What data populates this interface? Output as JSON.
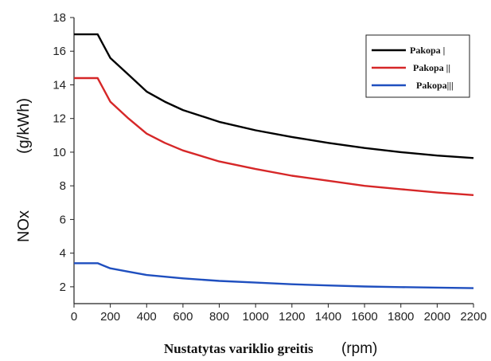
{
  "chart_data": {
    "type": "line",
    "xlabel": "Nustatytas variklio greitis",
    "xlabel_unit": "(rpm)",
    "ylabel": "NOx",
    "ylabel_unit": "(g/kWh)",
    "xlim": [
      0,
      2200
    ],
    "ylim": [
      1,
      18
    ],
    "xticks": [
      0,
      200,
      400,
      600,
      800,
      1000,
      1200,
      1400,
      1600,
      1800,
      2000,
      2200
    ],
    "yticks": [
      2,
      4,
      6,
      8,
      10,
      12,
      14,
      16,
      18
    ],
    "grid": false,
    "legend_position": "top-right",
    "series": [
      {
        "name": "Pakopa |",
        "color": "#000000",
        "x": [
          0,
          130,
          200,
          300,
          400,
          500,
          600,
          800,
          1000,
          1200,
          1400,
          1600,
          1800,
          2000,
          2200
        ],
        "y": [
          17.0,
          17.0,
          15.6,
          14.6,
          13.6,
          13.0,
          12.5,
          11.8,
          11.3,
          10.9,
          10.55,
          10.25,
          10.0,
          9.8,
          9.65
        ]
      },
      {
        "name": "Pakopa ||",
        "color": "#d62728",
        "x": [
          0,
          130,
          200,
          300,
          400,
          500,
          600,
          800,
          1000,
          1200,
          1400,
          1600,
          1800,
          2000,
          2200
        ],
        "y": [
          14.4,
          14.4,
          13.0,
          12.0,
          11.1,
          10.55,
          10.1,
          9.45,
          9.0,
          8.6,
          8.3,
          8.0,
          7.8,
          7.6,
          7.45
        ]
      },
      {
        "name": "Pakopa|||",
        "color": "#1f4fbf",
        "x": [
          0,
          130,
          200,
          300,
          400,
          600,
          800,
          1000,
          1200,
          1400,
          1600,
          1800,
          2000,
          2200
        ],
        "y": [
          3.4,
          3.4,
          3.1,
          2.9,
          2.7,
          2.5,
          2.35,
          2.25,
          2.15,
          2.08,
          2.02,
          1.98,
          1.95,
          1.92
        ]
      }
    ]
  }
}
